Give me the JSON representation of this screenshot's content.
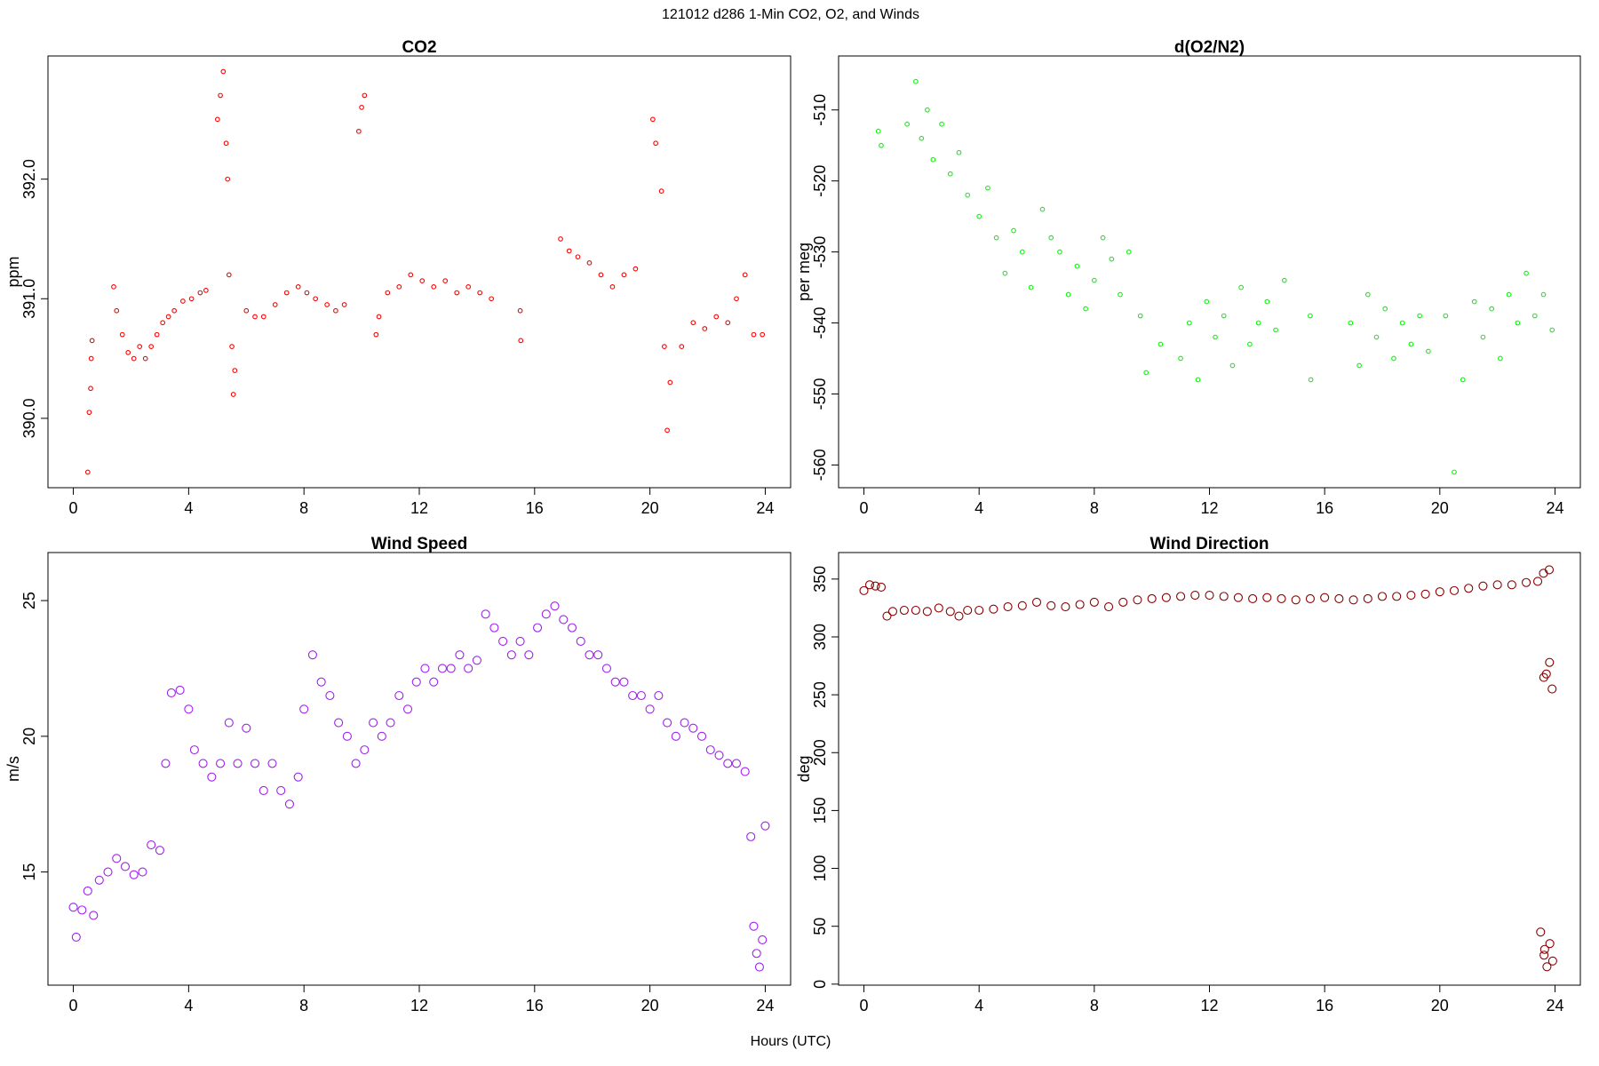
{
  "title": "121012   d286   1-Min CO2, O2, and Winds",
  "x_label": "Hours (UTC)",
  "chart_data": [
    {
      "type": "scatter",
      "title": "CO2",
      "y_label": "ppm",
      "color": "#ff0000",
      "xlim": [
        -0.88,
        24.88
      ],
      "xticks": [
        0,
        4,
        8,
        12,
        16,
        20,
        24
      ],
      "ylim": [
        389.42,
        393.03
      ],
      "yticks": [
        {
          "value": 390,
          "label": "390.0"
        },
        {
          "value": 391,
          "label": "391.0"
        },
        {
          "value": 392,
          "label": "392.0"
        }
      ],
      "x": [
        0.5,
        0.55,
        0.6,
        0.62,
        0.65,
        1.4,
        1.5,
        1.7,
        1.9,
        2.1,
        2.3,
        2.5,
        2.7,
        2.9,
        3.1,
        3.3,
        3.5,
        3.8,
        4.1,
        4.4,
        4.6,
        5.0,
        5.1,
        5.2,
        5.3,
        5.35,
        5.4,
        5.5,
        5.55,
        5.6,
        6.0,
        6.3,
        6.6,
        7.0,
        7.4,
        7.8,
        8.1,
        8.4,
        8.8,
        9.1,
        9.4,
        9.9,
        10.0,
        10.1,
        10.5,
        10.6,
        10.9,
        11.3,
        11.7,
        12.1,
        12.5,
        12.9,
        13.3,
        13.7,
        14.1,
        14.5,
        15.5,
        15.52,
        16.9,
        17.2,
        17.5,
        17.9,
        18.3,
        18.7,
        19.1,
        19.5,
        20.1,
        20.2,
        20.4,
        20.5,
        20.6,
        20.7,
        21.1,
        21.5,
        21.9,
        22.3,
        22.7,
        23.0,
        23.3,
        23.6,
        23.9
      ],
      "values": [
        389.55,
        390.05,
        390.25,
        390.5,
        390.65,
        391.1,
        390.9,
        390.7,
        390.55,
        390.5,
        390.6,
        390.5,
        390.6,
        390.7,
        390.8,
        390.85,
        390.9,
        390.98,
        391.0,
        391.05,
        391.07,
        392.5,
        392.7,
        392.9,
        392.3,
        392.0,
        391.2,
        390.6,
        390.2,
        390.4,
        390.9,
        390.85,
        390.85,
        390.95,
        391.05,
        391.1,
        391.05,
        391.0,
        390.95,
        390.9,
        390.95,
        392.4,
        392.6,
        392.7,
        390.7,
        390.85,
        391.05,
        391.1,
        391.2,
        391.15,
        391.1,
        391.15,
        391.05,
        391.1,
        391.05,
        391.0,
        390.9,
        390.65,
        391.5,
        391.4,
        391.35,
        391.3,
        391.2,
        391.1,
        391.2,
        391.25,
        392.5,
        392.3,
        391.9,
        390.6,
        389.9,
        390.3,
        390.6,
        390.8,
        390.75,
        390.85,
        390.8,
        391.0,
        391.2,
        390.7,
        390.7
      ]
    },
    {
      "type": "scatter",
      "title": "d(O2/N2)",
      "y_label": "per meg",
      "color": "#00ff00",
      "xlim": [
        -0.88,
        24.88
      ],
      "xticks": [
        0,
        4,
        8,
        12,
        16,
        20,
        24
      ],
      "ylim": [
        -563.2,
        -502.4
      ],
      "yticks": [
        -560,
        -550,
        -540,
        -530,
        -520,
        -510
      ],
      "x": [
        0.5,
        0.6,
        1.5,
        1.8,
        2.0,
        2.2,
        2.4,
        2.7,
        3.0,
        3.3,
        3.6,
        4.0,
        4.3,
        4.6,
        4.9,
        5.2,
        5.5,
        5.8,
        6.2,
        6.5,
        6.8,
        7.1,
        7.4,
        7.7,
        8.0,
        8.3,
        8.6,
        8.9,
        9.2,
        9.6,
        9.8,
        10.3,
        11.0,
        11.3,
        11.6,
        11.9,
        12.2,
        12.5,
        12.8,
        13.1,
        13.4,
        13.7,
        14.0,
        14.3,
        14.6,
        15.5,
        15.52,
        16.9,
        17.2,
        17.5,
        17.8,
        18.1,
        18.4,
        18.7,
        19.0,
        19.3,
        19.6,
        20.2,
        20.5,
        20.8,
        21.2,
        21.5,
        21.8,
        22.1,
        22.4,
        22.7,
        23.0,
        23.3,
        23.6,
        23.9
      ],
      "values": [
        -513,
        -515,
        -512,
        -506,
        -514,
        -510,
        -517,
        -512,
        -519,
        -516,
        -522,
        -525,
        -521,
        -528,
        -533,
        -527,
        -530,
        -535,
        -524,
        -528,
        -530,
        -536,
        -532,
        -538,
        -534,
        -528,
        -531,
        -536,
        -530,
        -539,
        -547,
        -543,
        -545,
        -540,
        -548,
        -537,
        -542,
        -539,
        -546,
        -535,
        -543,
        -540,
        -537,
        -541,
        -534,
        -539,
        -548,
        -540,
        -546,
        -536,
        -542,
        -538,
        -545,
        -540,
        -543,
        -539,
        -544,
        -539,
        -561,
        -548,
        -537,
        -542,
        -538,
        -545,
        -536,
        -540,
        -533,
        -539,
        -536,
        -541
      ]
    },
    {
      "type": "scatter",
      "title": "Wind Speed",
      "y_label": "m/s",
      "color": "#a020f0",
      "xlim": [
        -0.88,
        24.88
      ],
      "xticks": [
        0,
        4,
        8,
        12,
        16,
        20,
        24
      ],
      "ylim": [
        10.83,
        26.77
      ],
      "yticks": [
        15,
        20,
        25
      ],
      "x": [
        0.0,
        0.1,
        0.3,
        0.5,
        0.7,
        0.9,
        1.2,
        1.5,
        1.8,
        2.1,
        2.4,
        2.7,
        3.0,
        3.2,
        3.4,
        3.7,
        4.0,
        4.2,
        4.5,
        4.8,
        5.1,
        5.4,
        5.7,
        6.0,
        6.3,
        6.6,
        6.9,
        7.2,
        7.5,
        7.8,
        8.0,
        8.3,
        8.6,
        8.9,
        9.2,
        9.5,
        9.8,
        10.1,
        10.4,
        10.7,
        11.0,
        11.3,
        11.6,
        11.9,
        12.2,
        12.5,
        12.8,
        13.1,
        13.4,
        13.7,
        14.0,
        14.3,
        14.6,
        14.9,
        15.2,
        15.5,
        15.8,
        16.1,
        16.4,
        16.7,
        17.0,
        17.3,
        17.6,
        17.9,
        18.2,
        18.5,
        18.8,
        19.1,
        19.4,
        19.7,
        20.0,
        20.3,
        20.6,
        20.9,
        21.2,
        21.5,
        21.8,
        22.1,
        22.4,
        22.7,
        23.0,
        23.3,
        23.5,
        23.6,
        23.7,
        23.8,
        23.9,
        24.0
      ],
      "values": [
        13.7,
        12.6,
        13.6,
        14.3,
        13.4,
        14.7,
        15.0,
        15.5,
        15.2,
        14.9,
        15.0,
        16.0,
        15.8,
        19.0,
        21.6,
        21.7,
        21.0,
        19.5,
        19.0,
        18.5,
        19.0,
        20.5,
        19.0,
        20.3,
        19.0,
        18.0,
        19.0,
        18.0,
        17.5,
        18.5,
        21.0,
        23.0,
        22.0,
        21.5,
        20.5,
        20.0,
        19.0,
        19.5,
        20.5,
        20.0,
        20.5,
        21.5,
        21.0,
        22.0,
        22.5,
        22.0,
        22.5,
        22.5,
        23.0,
        22.5,
        22.8,
        24.5,
        24.0,
        23.5,
        23.0,
        23.5,
        23.0,
        24.0,
        24.5,
        24.8,
        24.3,
        24.0,
        23.5,
        23.0,
        23.0,
        22.5,
        22.0,
        22.0,
        21.5,
        21.5,
        21.0,
        21.5,
        20.5,
        20.0,
        20.5,
        20.3,
        20.0,
        19.5,
        19.3,
        19.0,
        19.0,
        18.7,
        16.3,
        13.0,
        12.0,
        11.5,
        12.5,
        16.7
      ]
    },
    {
      "type": "scatter",
      "title": "Wind Direction",
      "y_label": "deg",
      "color": "#8b0000",
      "xlim": [
        -0.88,
        24.88
      ],
      "xticks": [
        0,
        4,
        8,
        12,
        16,
        20,
        24
      ],
      "ylim": [
        -0.9,
        372.9
      ],
      "yticks": [
        0,
        50,
        100,
        150,
        200,
        250,
        300,
        350
      ],
      "x": [
        0.0,
        0.2,
        0.4,
        0.6,
        0.8,
        1.0,
        1.4,
        1.8,
        2.2,
        2.6,
        3.0,
        3.3,
        3.6,
        4.0,
        4.5,
        5.0,
        5.5,
        6.0,
        6.5,
        7.0,
        7.5,
        8.0,
        8.5,
        9.0,
        9.5,
        10.0,
        10.5,
        11.0,
        11.5,
        12.0,
        12.5,
        13.0,
        13.5,
        14.0,
        14.5,
        15.0,
        15.5,
        16.0,
        16.5,
        17.0,
        17.5,
        18.0,
        18.5,
        19.0,
        19.5,
        20.0,
        20.5,
        21.0,
        21.5,
        22.0,
        22.5,
        23.0,
        23.4,
        23.6,
        23.8,
        23.61,
        23.81,
        23.7,
        23.9,
        23.5,
        23.62,
        23.72,
        23.82,
        23.92,
        23.64
      ],
      "values": [
        340,
        345,
        344,
        343,
        318,
        322,
        323,
        323,
        322,
        325,
        322,
        318,
        323,
        323,
        324,
        326,
        327,
        330,
        327,
        326,
        328,
        330,
        326,
        330,
        332,
        333,
        334,
        335,
        336,
        336,
        335,
        334,
        333,
        334,
        333,
        332,
        333,
        334,
        333,
        332,
        333,
        335,
        335,
        336,
        337,
        339,
        340,
        342,
        344,
        345,
        345,
        347,
        348,
        355,
        358,
        265,
        278,
        268,
        255,
        45,
        25,
        15,
        35,
        20,
        30
      ]
    }
  ]
}
